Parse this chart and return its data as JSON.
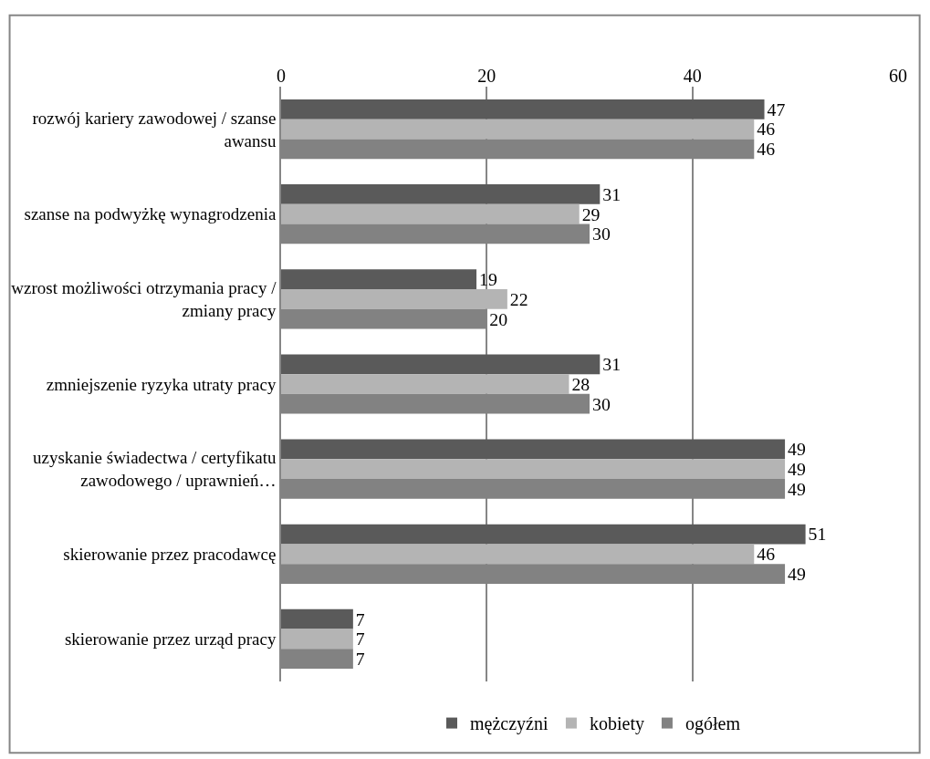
{
  "chart_data": {
    "type": "bar",
    "orientation": "horizontal",
    "categories": [
      "rozwój kariery zawodowej / szanse awansu",
      "szanse na podwyżkę wynagrodzenia",
      "wzrost możliwości otrzymania pracy / zmiany pracy",
      "zmniejszenie ryzyka utraty pracy",
      "uzyskanie świadectwa / certyfikatu zawodowego / uprawnień…",
      "skierowanie przez pracodawcę",
      "skierowanie przez urząd pracy"
    ],
    "series": [
      {
        "name": "mężczyźni",
        "color": "#5a5a5a",
        "values": [
          47,
          31,
          19,
          31,
          49,
          51,
          7
        ]
      },
      {
        "name": "kobiety",
        "color": "#b4b4b4",
        "values": [
          46,
          29,
          22,
          28,
          49,
          46,
          7
        ]
      },
      {
        "name": "ogółem",
        "color": "#828282",
        "values": [
          46,
          30,
          20,
          30,
          49,
          49,
          7
        ]
      }
    ],
    "xlim": [
      0,
      60
    ],
    "xticks": [
      0,
      20,
      40,
      60
    ],
    "grid": "x",
    "legend": "bottom",
    "data_labels": true
  }
}
